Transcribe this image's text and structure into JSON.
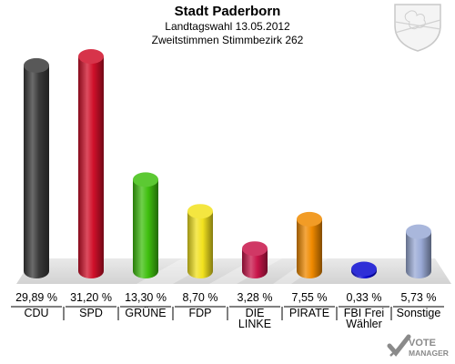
{
  "header": {
    "title": "Stadt Paderborn",
    "subtitle": "Landtagswahl 13.05.2012",
    "subtitle2": "Zweitstimmen Stimmbezirk 262"
  },
  "logo": {
    "line1": "VOTE",
    "line2": "MANAGER"
  },
  "crest": {
    "icon": "coat-of-arms-icon"
  },
  "colors": {
    "CDU": "#3a3a3a",
    "SPD": "#d0102a",
    "GRÜNE": "#3fbf0f",
    "FDP": "#f2e21e",
    "DIE LINKE": "#c8154a",
    "PIRATE": "#f08a00",
    "FBI Frei Wähler": "#0a0ad0",
    "Sonstige": "#9aaad6"
  },
  "chart_data": {
    "type": "bar",
    "title": "Stadt Paderborn",
    "categories": [
      "CDU",
      "SPD",
      "GRÜNE",
      "FDP",
      "DIE LINKE",
      "PIRATE",
      "FBI Frei Wähler",
      "Sonstige"
    ],
    "category_lines": [
      [
        "CDU"
      ],
      [
        "SPD"
      ],
      [
        "GRÜNE"
      ],
      [
        "FDP"
      ],
      [
        "DIE",
        "LINKE"
      ],
      [
        "PIRATE"
      ],
      [
        "FBI Frei",
        "Wähler"
      ],
      [
        "Sonstige"
      ]
    ],
    "values": [
      29.89,
      31.2,
      13.3,
      8.7,
      3.28,
      7.55,
      0.33,
      5.73
    ],
    "value_labels": [
      "29,89 %",
      "31,20 %",
      "13,30 %",
      "8,70 %",
      "3,28 %",
      "7,55 %",
      "0,33 %",
      "5,73 %"
    ],
    "ylim": [
      0,
      31.2
    ],
    "grid": false
  }
}
